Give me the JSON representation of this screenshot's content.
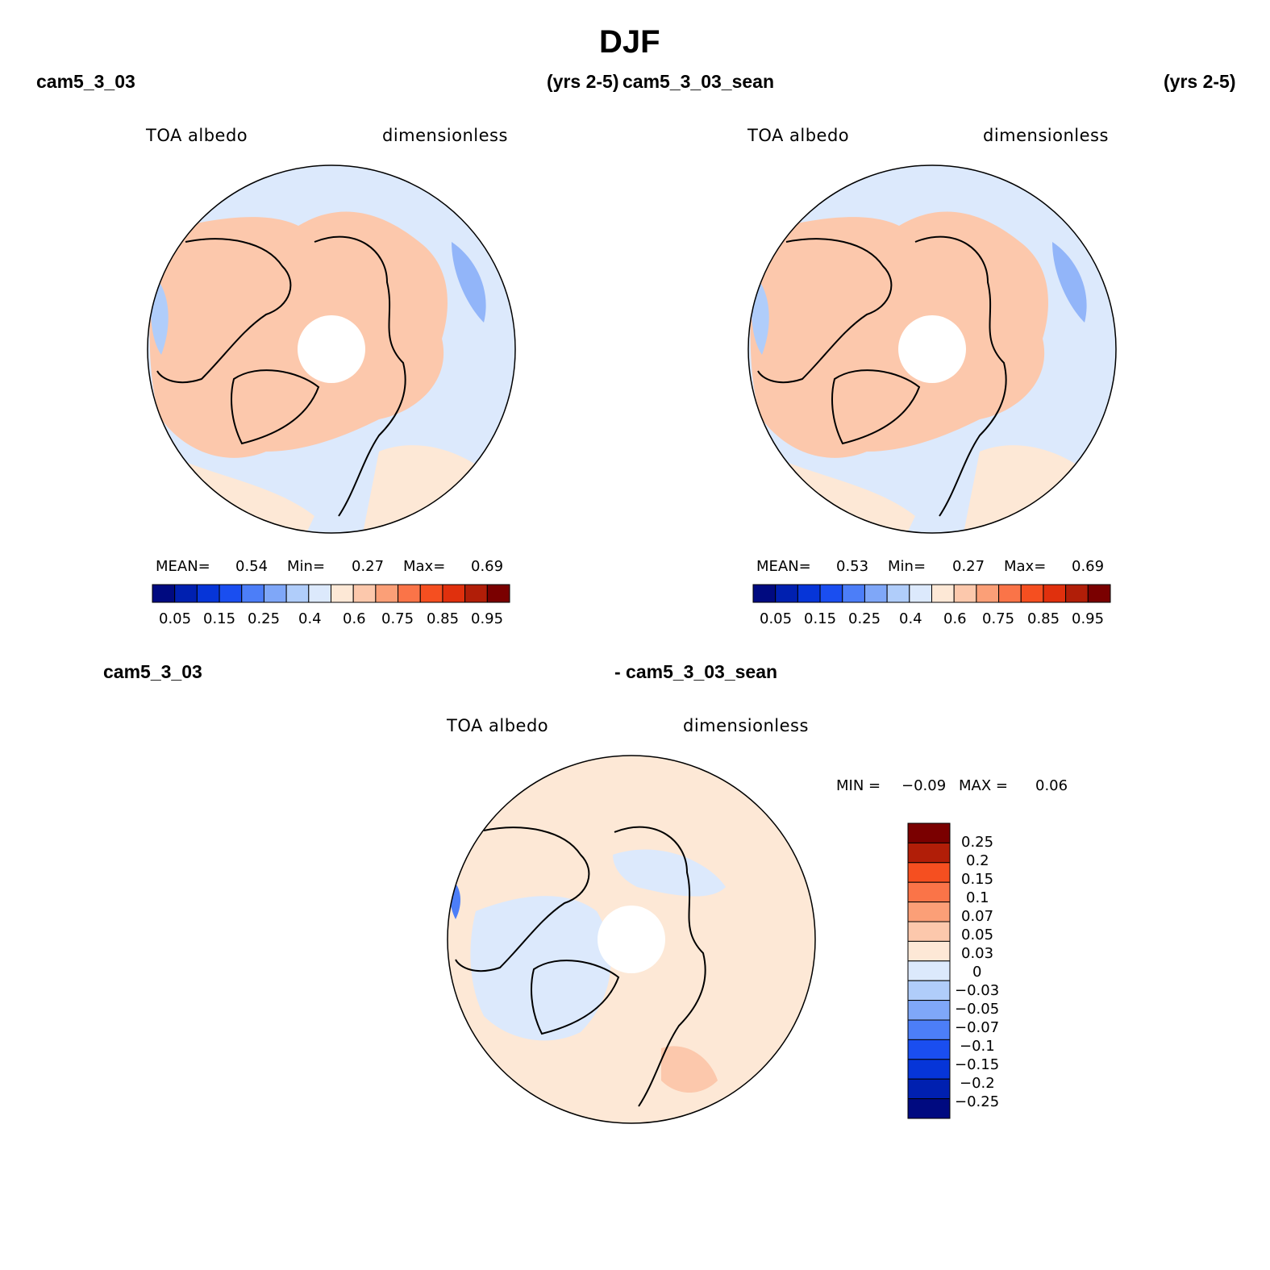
{
  "title": "DJF",
  "colors": {
    "abs_scale": [
      "#000a80",
      "#0020b0",
      "#0635d8",
      "#1a4ef0",
      "#4c7ef8",
      "#7fa7f8",
      "#b0cdfa",
      "#dce9fc",
      "#fde8d6",
      "#fcc8ac",
      "#fb9f77",
      "#fa7448",
      "#f54f20",
      "#e0300d",
      "#b11e08",
      "#7a0000"
    ],
    "diff_scale": [
      "#000a80",
      "#0020b0",
      "#0635d8",
      "#1a4ef0",
      "#4c7ef8",
      "#7fa7f8",
      "#b0cdfa",
      "#dce9fc",
      "#fde8d6",
      "#fcc8ac",
      "#fb9f77",
      "#fa7448",
      "#f54f20",
      "#b11e08",
      "#7a0000"
    ],
    "land_light_red": "#fcc8ac",
    "ocean_light_blue": "#dce9fc",
    "cream": "#fde8d6"
  },
  "panels": [
    {
      "case": "cam5_3_03",
      "years": "(yrs 2-5)",
      "variable": "TOA albedo",
      "units": "dimensionless",
      "mean_label": "MEAN=",
      "mean": "0.54",
      "min_label": "Min=",
      "min": "0.27",
      "max_label": "Max=",
      "max": "0.69"
    },
    {
      "case": "cam5_3_03_sean",
      "years": "(yrs 2-5)",
      "variable": "TOA albedo",
      "units": "dimensionless",
      "mean_label": "MEAN=",
      "mean": "0.53",
      "min_label": "Min=",
      "min": "0.27",
      "max_label": "Max=",
      "max": "0.69"
    }
  ],
  "colorbar_ticks": [
    "0.05",
    "0.15",
    "0.25",
    "0.4",
    "0.6",
    "0.75",
    "0.85",
    "0.95"
  ],
  "diff": {
    "case_a": "cam5_3_03",
    "case_b": "- cam5_3_03_sean",
    "variable": "TOA albedo",
    "units": "dimensionless",
    "min_label": "MIN =",
    "min": "−0.09",
    "max_label": "MAX =",
    "max": "0.06",
    "ticks": [
      "0.25",
      "0.2",
      "0.15",
      "0.1",
      "0.07",
      "0.05",
      "0.03",
      "0",
      "−0.03",
      "−0.05",
      "−0.07",
      "−0.1",
      "−0.15",
      "−0.2",
      "−0.25"
    ]
  }
}
